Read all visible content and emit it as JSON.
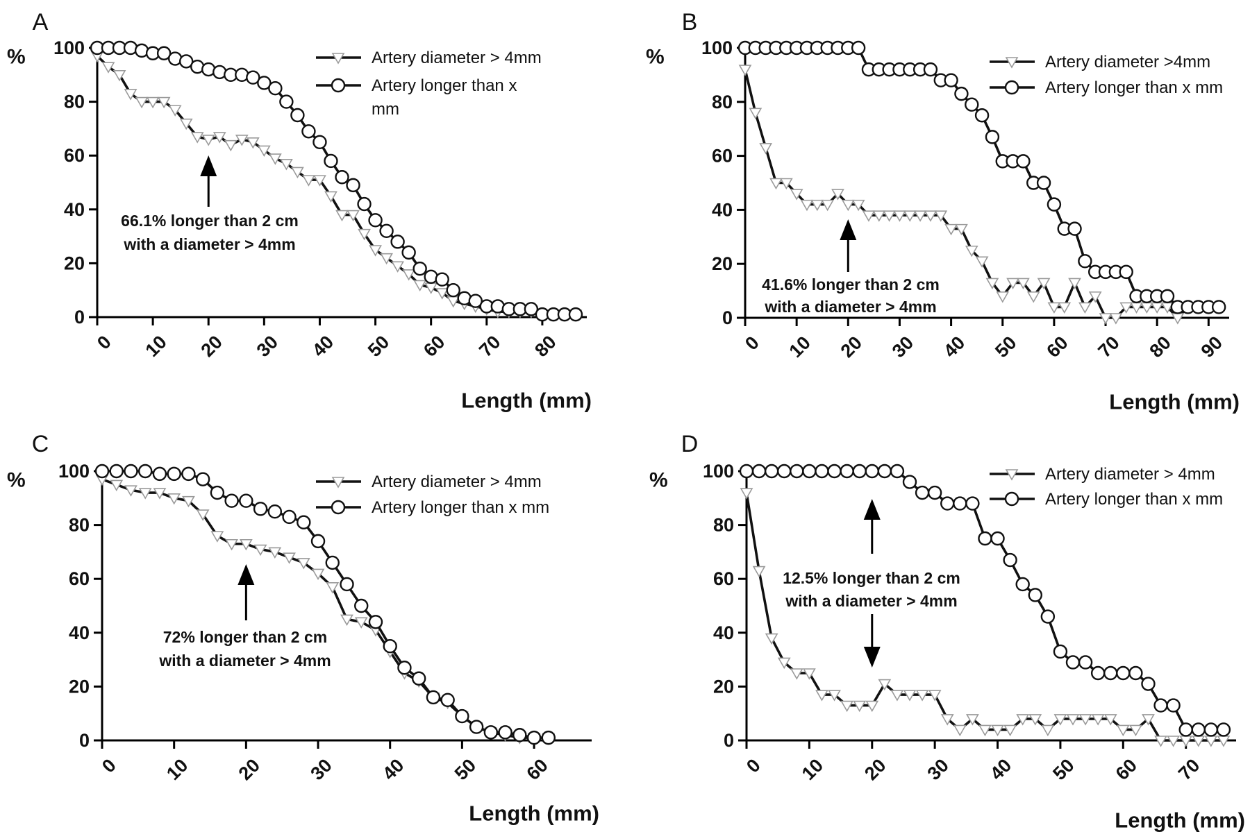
{
  "chart_data": [
    {
      "panel_label": "A",
      "type": "line",
      "xlabel": "Length (mm)",
      "ylabel": "%",
      "xlim": [
        0,
        88
      ],
      "ylim": [
        0,
        100
      ],
      "xticks": [
        "0",
        "10",
        "20",
        "30",
        "40",
        "50",
        "60",
        "70",
        "80"
      ],
      "yticks": [
        "0",
        "20",
        "40",
        "60",
        "80",
        "100"
      ],
      "legend_position": "top-right",
      "series": [
        {
          "name": "Artery diameter > 4mm",
          "marker": "triangle",
          "x": [
            0,
            2,
            4,
            6,
            8,
            10,
            12,
            14,
            16,
            18,
            20,
            22,
            24,
            26,
            28,
            30,
            32,
            34,
            36,
            38,
            40,
            42,
            44,
            46,
            48,
            50,
            52,
            54,
            56,
            58,
            60,
            62,
            64,
            66,
            68,
            70,
            72,
            74,
            76,
            78,
            80,
            82,
            84,
            86
          ],
          "y": [
            97,
            93,
            90,
            83,
            80,
            80,
            80,
            77,
            72,
            67,
            66,
            67,
            64,
            66,
            65,
            62,
            59,
            57,
            54,
            51,
            51,
            45,
            38,
            38,
            31,
            25,
            22,
            19,
            16,
            12,
            11,
            9,
            6,
            5,
            4,
            3,
            2,
            2,
            2,
            2,
            1,
            1,
            1,
            1
          ]
        },
        {
          "name": "Artery longer than x\nmm",
          "marker": "circle",
          "x": [
            0,
            2,
            4,
            6,
            8,
            10,
            12,
            14,
            16,
            18,
            20,
            22,
            24,
            26,
            28,
            30,
            32,
            34,
            36,
            38,
            40,
            42,
            44,
            46,
            48,
            50,
            52,
            54,
            56,
            58,
            60,
            62,
            64,
            66,
            68,
            70,
            72,
            74,
            76,
            78,
            80,
            82,
            84,
            86
          ],
          "y": [
            100,
            100,
            100,
            100,
            99,
            98,
            98,
            96,
            95,
            93,
            92,
            91,
            90,
            90,
            89,
            87,
            85,
            80,
            75,
            69,
            65,
            58,
            52,
            49,
            42,
            36,
            32,
            28,
            24,
            18,
            15,
            14,
            10,
            7,
            6,
            4,
            4,
            3,
            3,
            3,
            1,
            1,
            1,
            1
          ]
        }
      ],
      "annotation": {
        "line1": "66.1% longer than 2 cm",
        "line2": "with a diameter > 4mm",
        "arrow_x": 20
      }
    },
    {
      "panel_label": "B",
      "type": "line",
      "xlabel": "Length (mm)",
      "ylabel": "%",
      "xlim": [
        0,
        94
      ],
      "ylim": [
        0,
        100
      ],
      "xticks": [
        "0",
        "10",
        "20",
        "30",
        "40",
        "50",
        "60",
        "70",
        "80",
        "90"
      ],
      "yticks": [
        "0",
        "20",
        "40",
        "60",
        "80",
        "100"
      ],
      "legend_position": "top-right",
      "series": [
        {
          "name": "Artery diameter >4mm",
          "marker": "triangle",
          "x": [
            0,
            2,
            4,
            6,
            8,
            10,
            12,
            14,
            16,
            18,
            20,
            22,
            24,
            26,
            28,
            30,
            32,
            34,
            36,
            38,
            40,
            42,
            44,
            46,
            48,
            50,
            52,
            54,
            56,
            58,
            60,
            62,
            64,
            66,
            68,
            70,
            72,
            74,
            76,
            78,
            80,
            82,
            84,
            86,
            88,
            90,
            92
          ],
          "y": [
            92,
            76,
            63,
            50,
            50,
            46,
            42,
            42,
            42,
            46,
            42,
            42,
            38,
            38,
            38,
            38,
            38,
            38,
            38,
            38,
            33,
            33,
            25,
            21,
            13,
            8,
            13,
            13,
            8,
            13,
            4,
            4,
            13,
            4,
            8,
            0,
            0,
            4,
            4,
            4,
            4,
            4,
            0,
            4,
            4,
            4,
            4
          ]
        },
        {
          "name": "Artery longer than x mm",
          "marker": "circle",
          "x": [
            0,
            2,
            4,
            6,
            8,
            10,
            12,
            14,
            16,
            18,
            20,
            22,
            24,
            26,
            28,
            30,
            32,
            34,
            36,
            38,
            40,
            42,
            44,
            46,
            48,
            50,
            52,
            54,
            56,
            58,
            60,
            62,
            64,
            66,
            68,
            70,
            72,
            74,
            76,
            78,
            80,
            82,
            84,
            86,
            88,
            90,
            92
          ],
          "y": [
            100,
            100,
            100,
            100,
            100,
            100,
            100,
            100,
            100,
            100,
            100,
            100,
            92,
            92,
            92,
            92,
            92,
            92,
            92,
            88,
            88,
            83,
            79,
            75,
            67,
            58,
            58,
            58,
            50,
            50,
            42,
            33,
            33,
            21,
            17,
            17,
            17,
            17,
            8,
            8,
            8,
            8,
            4,
            4,
            4,
            4,
            4
          ]
        }
      ],
      "annotation": {
        "line1": "41.6% longer than 2 cm",
        "line2": "with a diameter > 4mm",
        "arrow_x": 20
      }
    },
    {
      "panel_label": "C",
      "type": "line",
      "xlabel": "Length (mm)",
      "ylabel": "%",
      "xlim": [
        0,
        68
      ],
      "ylim": [
        0,
        100
      ],
      "xticks": [
        "0",
        "10",
        "20",
        "30",
        "40",
        "50",
        "60"
      ],
      "yticks": [
        "0",
        "20",
        "40",
        "60",
        "80",
        "100"
      ],
      "legend_position": "top-right",
      "series": [
        {
          "name": "Artery diameter > 4mm",
          "marker": "triangle",
          "x": [
            0,
            2,
            4,
            6,
            8,
            10,
            12,
            14,
            16,
            18,
            20,
            22,
            24,
            26,
            28,
            30,
            32,
            34,
            36,
            38,
            40,
            42,
            44,
            46,
            48,
            50,
            52,
            54,
            56,
            58,
            60,
            62
          ],
          "y": [
            97,
            95,
            93,
            92,
            92,
            90,
            89,
            84,
            76,
            73,
            73,
            71,
            70,
            68,
            66,
            62,
            57,
            45,
            44,
            41,
            33,
            25,
            22,
            16,
            14,
            9,
            5,
            3,
            2,
            1,
            1,
            1
          ]
        },
        {
          "name": "Artery longer than x mm",
          "marker": "circle",
          "x": [
            0,
            2,
            4,
            6,
            8,
            10,
            12,
            14,
            16,
            18,
            20,
            22,
            24,
            26,
            28,
            30,
            32,
            34,
            36,
            38,
            40,
            42,
            44,
            46,
            48,
            50,
            52,
            54,
            56,
            58,
            60,
            62
          ],
          "y": [
            100,
            100,
            100,
            100,
            99,
            99,
            99,
            97,
            92,
            89,
            89,
            86,
            85,
            83,
            81,
            74,
            66,
            58,
            50,
            44,
            35,
            27,
            23,
            16,
            15,
            9,
            5,
            3,
            3,
            2,
            1,
            1
          ]
        }
      ],
      "annotation": {
        "line1": "72% longer than 2 cm",
        "line2": "with a diameter > 4mm",
        "arrow_x": 20
      }
    },
    {
      "panel_label": "D",
      "type": "line",
      "xlabel": "Length (mm)",
      "ylabel": "%",
      "xlim": [
        0,
        78
      ],
      "ylim": [
        0,
        100
      ],
      "xticks": [
        "0",
        "10",
        "20",
        "30",
        "40",
        "50",
        "60",
        "70"
      ],
      "yticks": [
        "0",
        "20",
        "40",
        "60",
        "80",
        "100"
      ],
      "legend_position": "top-right",
      "series": [
        {
          "name": "Artery diameter > 4mm",
          "marker": "triangle",
          "x": [
            0,
            2,
            4,
            6,
            8,
            10,
            12,
            14,
            16,
            18,
            20,
            22,
            24,
            26,
            28,
            30,
            32,
            34,
            36,
            38,
            40,
            42,
            44,
            46,
            48,
            50,
            52,
            54,
            56,
            58,
            60,
            62,
            64,
            66,
            68,
            70,
            72,
            74,
            76
          ],
          "y": [
            92,
            63,
            38,
            29,
            25,
            25,
            17,
            17,
            13,
            13,
            13,
            21,
            17,
            17,
            17,
            17,
            8,
            4,
            8,
            4,
            4,
            4,
            8,
            8,
            4,
            8,
            8,
            8,
            8,
            8,
            4,
            4,
            8,
            0,
            0,
            0,
            0,
            0,
            0
          ]
        },
        {
          "name": "Artery longer than x mm",
          "marker": "circle",
          "x": [
            0,
            2,
            4,
            6,
            8,
            10,
            12,
            14,
            16,
            18,
            20,
            22,
            24,
            26,
            28,
            30,
            32,
            34,
            36,
            38,
            40,
            42,
            44,
            46,
            48,
            50,
            52,
            54,
            56,
            58,
            60,
            62,
            64,
            66,
            68,
            70,
            72,
            74,
            76
          ],
          "y": [
            100,
            100,
            100,
            100,
            100,
            100,
            100,
            100,
            100,
            100,
            100,
            100,
            100,
            96,
            92,
            92,
            88,
            88,
            88,
            75,
            75,
            67,
            58,
            54,
            46,
            33,
            29,
            29,
            25,
            25,
            25,
            25,
            21,
            13,
            13,
            4,
            4,
            4,
            4
          ]
        }
      ],
      "annotation": {
        "line1": "12.5% longer than 2 cm",
        "line2": "with a diameter > 4mm",
        "arrow_x": 20,
        "double_arrow": true
      }
    }
  ]
}
